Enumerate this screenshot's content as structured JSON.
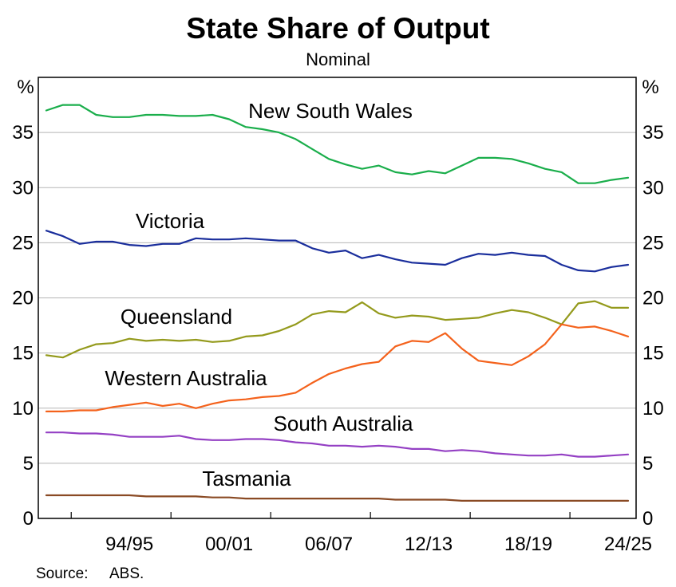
{
  "source": {
    "label": "Source:",
    "text": "ABS."
  },
  "chart_data": {
    "type": "line",
    "title": "State Share of Output",
    "subtitle": "Nominal",
    "yunit": "%",
    "ylim": [
      0,
      40
    ],
    "yticks": [
      0,
      5,
      10,
      15,
      20,
      25,
      30,
      35
    ],
    "grid": true,
    "x": [
      1990,
      1991,
      1992,
      1993,
      1994,
      1995,
      1996,
      1997,
      1998,
      1999,
      2000,
      2001,
      2002,
      2003,
      2004,
      2005,
      2006,
      2007,
      2008,
      2009,
      2010,
      2011,
      2012,
      2013,
      2014,
      2015,
      2016,
      2017,
      2018,
      2019,
      2020,
      2021,
      2022,
      2023,
      2024,
      2025
    ],
    "xticks": [
      {
        "x": 1995,
        "label": "94/95"
      },
      {
        "x": 2001,
        "label": "00/01"
      },
      {
        "x": 2007,
        "label": "06/07"
      },
      {
        "x": 2013,
        "label": "12/13"
      },
      {
        "x": 2019,
        "label": "18/19"
      },
      {
        "x": 2025,
        "label": "24/25"
      }
    ],
    "series": [
      {
        "name": "New South Wales",
        "color": "#1aae4b",
        "values": [
          37.0,
          37.5,
          37.5,
          36.6,
          36.4,
          36.4,
          36.6,
          36.6,
          36.5,
          36.5,
          36.6,
          36.2,
          35.5,
          35.3,
          35.0,
          34.4,
          33.5,
          32.6,
          32.1,
          31.7,
          32.0,
          31.4,
          31.2,
          31.5,
          31.3,
          32.0,
          32.7,
          32.7,
          32.6,
          32.2,
          31.7,
          31.4,
          30.4,
          30.4,
          30.7,
          30.9
        ]
      },
      {
        "name": "Victoria",
        "color": "#1a2e9c",
        "values": [
          26.1,
          25.6,
          24.9,
          25.1,
          25.1,
          24.8,
          24.7,
          24.9,
          24.9,
          25.4,
          25.3,
          25.3,
          25.4,
          25.3,
          25.2,
          25.2,
          24.5,
          24.1,
          24.3,
          23.6,
          23.9,
          23.5,
          23.2,
          23.1,
          23.0,
          23.6,
          24.0,
          23.9,
          24.1,
          23.9,
          23.8,
          23.0,
          22.5,
          22.4,
          22.8,
          23.0
        ]
      },
      {
        "name": "Queensland",
        "color": "#949a1c",
        "values": [
          14.8,
          14.6,
          15.3,
          15.8,
          15.9,
          16.3,
          16.1,
          16.2,
          16.1,
          16.2,
          16.0,
          16.1,
          16.5,
          16.6,
          17.0,
          17.6,
          18.5,
          18.8,
          18.7,
          19.6,
          18.6,
          18.2,
          18.4,
          18.3,
          18.0,
          18.1,
          18.2,
          18.6,
          18.9,
          18.7,
          18.2,
          17.6,
          19.5,
          19.7,
          19.1,
          19.1
        ]
      },
      {
        "name": "Western Australia",
        "color": "#f4621c",
        "values": [
          9.7,
          9.7,
          9.8,
          9.8,
          10.1,
          10.3,
          10.5,
          10.2,
          10.4,
          10.0,
          10.4,
          10.7,
          10.8,
          11.0,
          11.1,
          11.4,
          12.3,
          13.1,
          13.6,
          14.0,
          14.2,
          15.6,
          16.1,
          16.0,
          16.8,
          15.4,
          14.3,
          14.1,
          13.9,
          14.7,
          15.8,
          17.6,
          17.3,
          17.4,
          17.0,
          16.5
        ]
      },
      {
        "name": "South Australia",
        "color": "#9440c4",
        "values": [
          7.8,
          7.8,
          7.7,
          7.7,
          7.6,
          7.4,
          7.4,
          7.4,
          7.5,
          7.2,
          7.1,
          7.1,
          7.2,
          7.2,
          7.1,
          6.9,
          6.8,
          6.6,
          6.6,
          6.5,
          6.6,
          6.5,
          6.3,
          6.3,
          6.1,
          6.2,
          6.1,
          5.9,
          5.8,
          5.7,
          5.7,
          5.8,
          5.6,
          5.6,
          5.7,
          5.8
        ]
      },
      {
        "name": "Tasmania",
        "color": "#8a4a24",
        "values": [
          2.1,
          2.1,
          2.1,
          2.1,
          2.1,
          2.1,
          2.0,
          2.0,
          2.0,
          2.0,
          1.9,
          1.9,
          1.8,
          1.8,
          1.8,
          1.8,
          1.8,
          1.8,
          1.8,
          1.8,
          1.8,
          1.7,
          1.7,
          1.7,
          1.7,
          1.6,
          1.6,
          1.6,
          1.6,
          1.6,
          1.6,
          1.6,
          1.6,
          1.6,
          1.6,
          1.6
        ]
      }
    ]
  }
}
